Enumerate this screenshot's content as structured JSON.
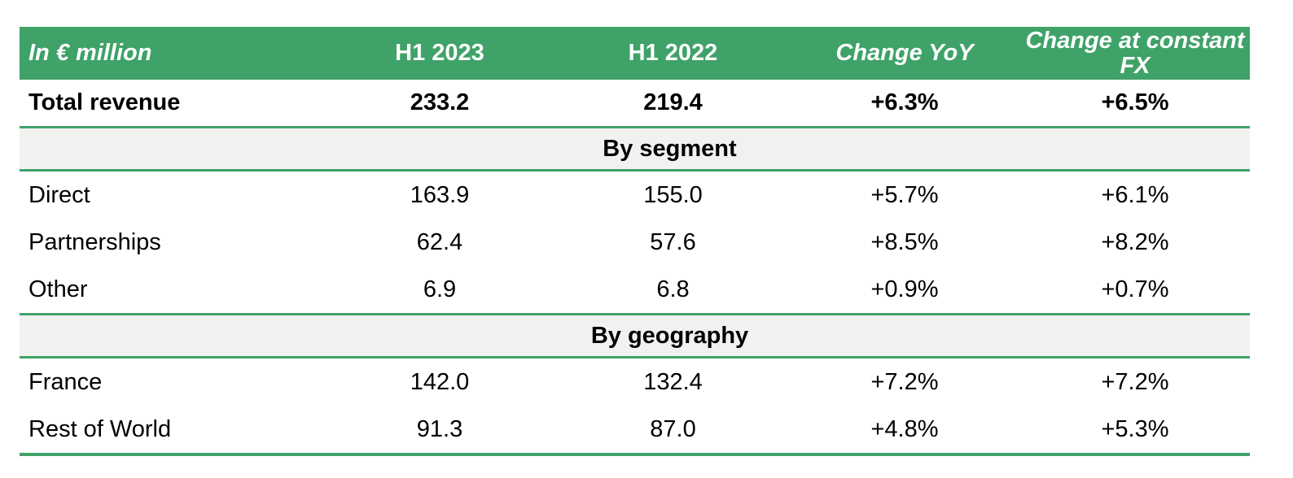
{
  "table": {
    "header": {
      "unit": "In € million",
      "col_h1_2023": "H1 2023",
      "col_h1_2022": "H1 2022",
      "col_change_yoy": "Change YoY",
      "col_change_fx": "Change at constant FX"
    },
    "total": {
      "label": "Total revenue",
      "values": [
        "233.2",
        "219.4",
        "+6.3%",
        "+6.5%"
      ]
    },
    "sections": [
      {
        "title": "By segment",
        "rows": [
          {
            "label": "Direct",
            "values": [
              "163.9",
              "155.0",
              "+5.7%",
              "+6.1%"
            ]
          },
          {
            "label": "Partnerships",
            "values": [
              "62.4",
              "57.6",
              "+8.5%",
              "+8.2%"
            ]
          },
          {
            "label": "Other",
            "values": [
              "6.9",
              "6.8",
              "+0.9%",
              "+0.7%"
            ]
          }
        ]
      },
      {
        "title": "By geography",
        "rows": [
          {
            "label": "France",
            "values": [
              "142.0",
              "132.4",
              "+7.2%",
              "+7.2%"
            ]
          },
          {
            "label": "Rest of World",
            "values": [
              "91.3",
              "87.0",
              "+4.8%",
              "+5.3%"
            ]
          }
        ]
      }
    ]
  },
  "colors": {
    "header_green": "#3FA268",
    "rule_green": "#3FA268",
    "band_gray": "#F1F1EF",
    "header_text": "#FFFFFF",
    "body_text": "#000000"
  }
}
